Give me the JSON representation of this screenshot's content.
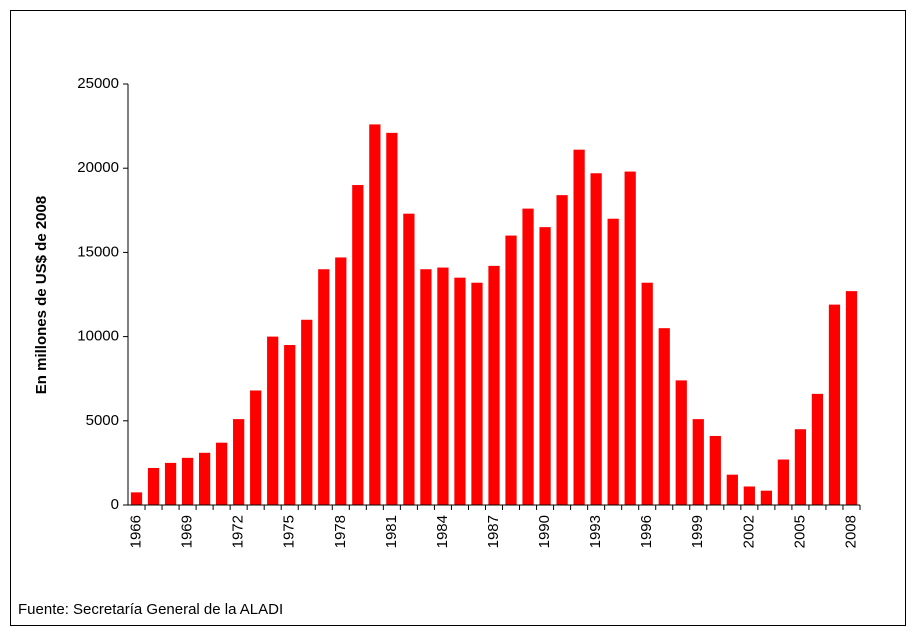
{
  "chart_data": {
    "type": "bar",
    "ylabel": "En millones de US$ de 2008",
    "source": "Fuente: Secretaría General de la ALADI",
    "categories": [
      "1966",
      null,
      null,
      "1969",
      null,
      null,
      "1972",
      null,
      null,
      "1975",
      null,
      null,
      "1978",
      null,
      null,
      "1981",
      null,
      null,
      "1984",
      null,
      null,
      "1987",
      null,
      null,
      "1990",
      null,
      null,
      "1993",
      null,
      null,
      "1996",
      null,
      null,
      "1999",
      null,
      null,
      "2002",
      null,
      null,
      "2005",
      null,
      null,
      "2008"
    ],
    "values": [
      750,
      2200,
      2500,
      2800,
      3100,
      3700,
      5100,
      6800,
      10000,
      9500,
      11000,
      14000,
      14700,
      19000,
      22600,
      22100,
      17300,
      14000,
      14100,
      13500,
      13200,
      14200,
      16000,
      17600,
      16500,
      18400,
      21100,
      19700,
      17000,
      19800,
      13200,
      10500,
      7400,
      5100,
      4100,
      1800,
      1100,
      850,
      2700,
      4500,
      6600,
      11900,
      12700
    ],
    "color": "#ff0000",
    "ylim": [
      0,
      25000
    ],
    "yticks": [
      0,
      5000,
      10000,
      15000,
      20000,
      25000
    ],
    "grid": false
  }
}
